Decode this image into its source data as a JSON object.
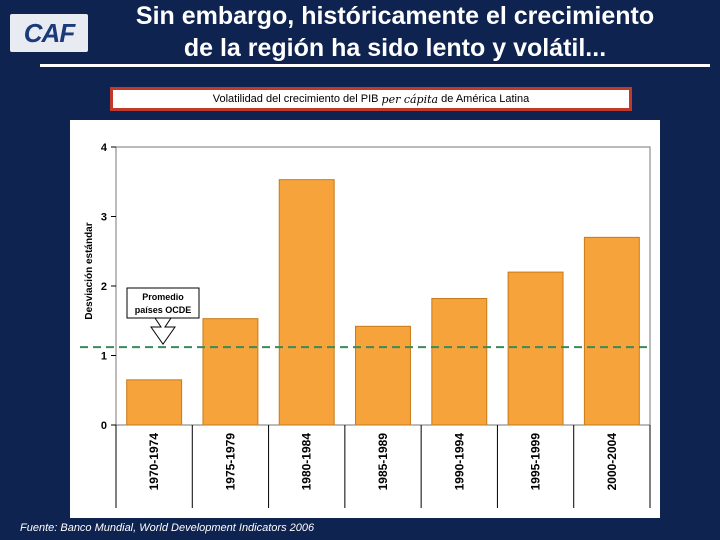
{
  "slide": {
    "logo_text": "CAF",
    "title_line1": "Sin embargo, históricamente el crecimiento",
    "title_line2": "de la región ha sido lento y volátil...",
    "subtitle_prefix": "Volatilidad del crecimiento del PIB ",
    "subtitle_italic": "per cápita",
    "subtitle_suffix": " de América Latina",
    "source": "Fuente: Banco Mundial, World Development Indicators 2006"
  },
  "colors": {
    "background": "#0e2350",
    "bar_fill": "#f5a33a",
    "bar_stroke": "#c87a18",
    "ocde_line": "#3a8a5a",
    "subtitle_border": "#c0392b"
  },
  "chart_data": {
    "type": "bar",
    "categories": [
      "1970-1974",
      "1975-1979",
      "1980-1984",
      "1985-1989",
      "1990-1994",
      "1995-1999",
      "2000-2004"
    ],
    "values": [
      0.65,
      1.53,
      3.53,
      1.42,
      1.82,
      2.2,
      2.7
    ],
    "ylabel": "Desviación estándar",
    "xlabel": "",
    "ylim": [
      0,
      4
    ],
    "yticks": [
      "0",
      "1",
      "2",
      "3",
      "4"
    ],
    "reference_line": {
      "value": 1.12,
      "label_line1": "Promedio",
      "label_line2": "países OCDE"
    },
    "grid": false
  }
}
